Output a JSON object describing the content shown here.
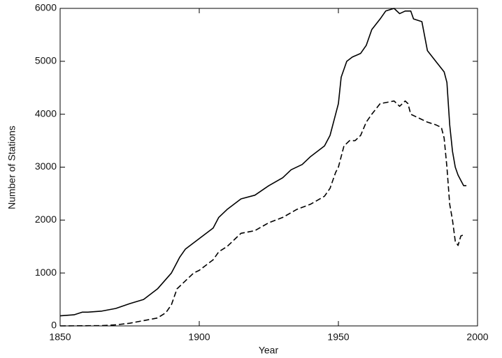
{
  "chart_data": {
    "type": "line",
    "x_label": "Year",
    "y_label": "Number of Stations",
    "xlim": [
      1850,
      2000
    ],
    "xticks": [
      1850,
      1900,
      1950,
      2000
    ],
    "ylim": [
      0,
      6000
    ],
    "yticks": [
      0,
      1000,
      2000,
      3000,
      4000,
      5000,
      6000
    ],
    "grid": false,
    "series": [
      {
        "color": "#000000",
        "linestyle": "solid",
        "x": [
          1850,
          1855,
          1858,
          1860,
          1865,
          1870,
          1875,
          1880,
          1885,
          1890,
          1893,
          1895,
          1900,
          1905,
          1907,
          1910,
          1915,
          1920,
          1925,
          1930,
          1933,
          1937,
          1940,
          1945,
          1947,
          1949,
          1950,
          1951,
          1953,
          1955,
          1958,
          1960,
          1962,
          1965,
          1967,
          1970,
          1972,
          1974,
          1976,
          1977,
          1980,
          1982,
          1985,
          1988,
          1989,
          1990,
          1991,
          1992,
          1993,
          1994,
          1995,
          1996
        ],
        "values": [
          190,
          210,
          260,
          260,
          280,
          330,
          420,
          500,
          700,
          1000,
          1300,
          1450,
          1650,
          1850,
          2050,
          2200,
          2400,
          2470,
          2650,
          2800,
          2950,
          3050,
          3200,
          3400,
          3600,
          4000,
          4200,
          4700,
          5000,
          5080,
          5150,
          5300,
          5600,
          5800,
          5950,
          6000,
          5900,
          5950,
          5950,
          5800,
          5750,
          5200,
          5000,
          4800,
          4600,
          3800,
          3300,
          3000,
          2850,
          2750,
          2650,
          2650
        ]
      },
      {
        "color": "#000000",
        "linestyle": "dashed",
        "x": [
          1850,
          1865,
          1870,
          1875,
          1880,
          1885,
          1888,
          1890,
          1892,
          1895,
          1898,
          1900,
          1905,
          1907,
          1910,
          1913,
          1915,
          1920,
          1925,
          1930,
          1935,
          1940,
          1945,
          1947,
          1949,
          1950,
          1952,
          1954,
          1956,
          1958,
          1960,
          1962,
          1965,
          1970,
          1972,
          1974,
          1975,
          1976,
          1980,
          1982,
          1985,
          1987,
          1988,
          1989,
          1990,
          1991,
          1992,
          1993,
          1994,
          1995
        ],
        "values": [
          0,
          5,
          20,
          50,
          100,
          150,
          250,
          400,
          700,
          850,
          1000,
          1050,
          1250,
          1400,
          1500,
          1650,
          1750,
          1800,
          1950,
          2050,
          2200,
          2300,
          2450,
          2600,
          2900,
          3000,
          3400,
          3500,
          3500,
          3600,
          3850,
          4000,
          4200,
          4250,
          4150,
          4250,
          4200,
          4000,
          3900,
          3850,
          3800,
          3750,
          3550,
          3000,
          2300,
          2000,
          1600,
          1520,
          1700,
          1720
        ]
      }
    ]
  }
}
